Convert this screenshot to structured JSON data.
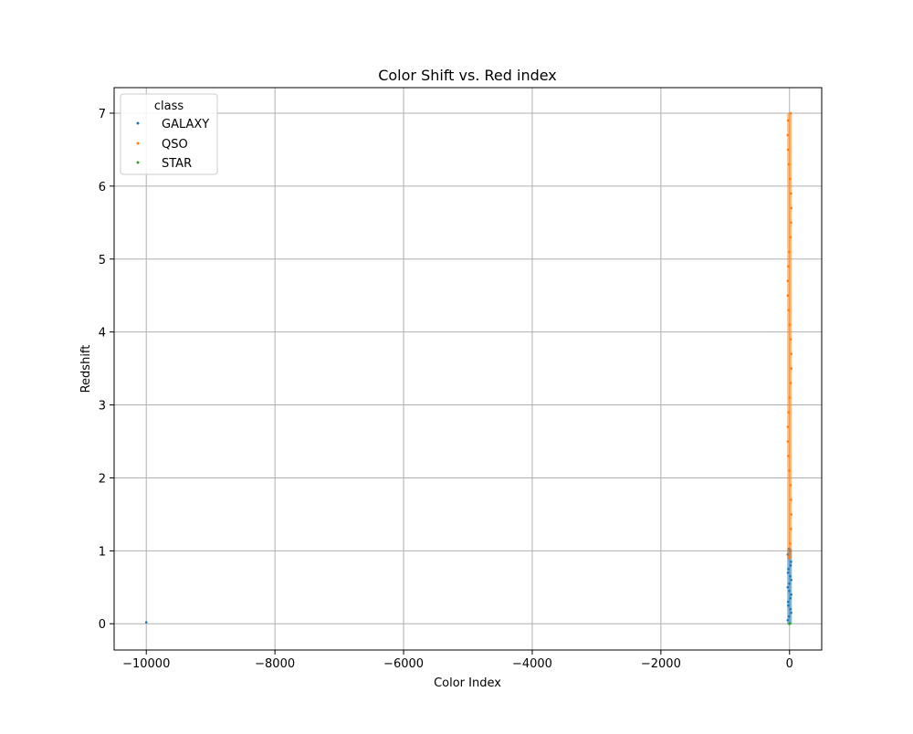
{
  "chart_data": {
    "type": "scatter",
    "title": "Color Shift vs. Red index",
    "xlabel": "Color Index",
    "ylabel": "Redshift",
    "xlim": [
      -10500,
      500
    ],
    "ylim": [
      -0.36,
      7.35
    ],
    "x_ticks": [
      -10000,
      -8000,
      -6000,
      -4000,
      -2000,
      0
    ],
    "x_tick_labels": [
      "−10000",
      "−8000",
      "−6000",
      "−4000",
      "−2000",
      "0"
    ],
    "y_ticks": [
      0,
      1,
      2,
      3,
      4,
      5,
      6,
      7
    ],
    "y_tick_labels": [
      "0",
      "1",
      "2",
      "3",
      "4",
      "5",
      "6",
      "7"
    ],
    "grid": true,
    "legend": {
      "title": "class",
      "placement": "top-left"
    },
    "series": [
      {
        "name": "GALAXY",
        "color": "#1f77b4",
        "points": [
          [
            0,
            0.0
          ],
          [
            0,
            0.05
          ],
          [
            0,
            0.1
          ],
          [
            0,
            0.15
          ],
          [
            0,
            0.2
          ],
          [
            0,
            0.25
          ],
          [
            0,
            0.3
          ],
          [
            0,
            0.35
          ],
          [
            0,
            0.4
          ],
          [
            0,
            0.45
          ],
          [
            0,
            0.5
          ],
          [
            0,
            0.55
          ],
          [
            0,
            0.6
          ],
          [
            0,
            0.65
          ],
          [
            0,
            0.7
          ],
          [
            0,
            0.75
          ],
          [
            0,
            0.8
          ],
          [
            0,
            0.85
          ],
          [
            0,
            0.9
          ],
          [
            0,
            0.95
          ],
          [
            0,
            1.0
          ],
          [
            0,
            1.03
          ],
          [
            -10000,
            0.02
          ]
        ]
      },
      {
        "name": "QSO",
        "color": "#ff7f0e",
        "points": [
          [
            0,
            0.9
          ],
          [
            0,
            1.1
          ],
          [
            0,
            1.3
          ],
          [
            0,
            1.5
          ],
          [
            0,
            1.7
          ],
          [
            0,
            1.9
          ],
          [
            0,
            2.1
          ],
          [
            0,
            2.3
          ],
          [
            0,
            2.5
          ],
          [
            0,
            2.7
          ],
          [
            0,
            2.9
          ],
          [
            0,
            3.1
          ],
          [
            0,
            3.3
          ],
          [
            0,
            3.5
          ],
          [
            0,
            3.7
          ],
          [
            0,
            3.9
          ],
          [
            0,
            4.1
          ],
          [
            0,
            4.3
          ],
          [
            0,
            4.5
          ],
          [
            0,
            4.7
          ],
          [
            0,
            4.9
          ],
          [
            0,
            5.1
          ],
          [
            0,
            5.3
          ],
          [
            0,
            5.5
          ],
          [
            0,
            5.7
          ],
          [
            0,
            5.9
          ],
          [
            0,
            6.1
          ],
          [
            0,
            6.3
          ],
          [
            0,
            6.5
          ],
          [
            0,
            6.7
          ],
          [
            0,
            6.9
          ],
          [
            0,
            7.0
          ]
        ]
      },
      {
        "name": "STAR",
        "color": "#2ca02c",
        "points": [
          [
            0,
            0.0
          ],
          [
            0,
            0.002
          ],
          [
            0,
            -0.001
          ]
        ]
      }
    ]
  }
}
